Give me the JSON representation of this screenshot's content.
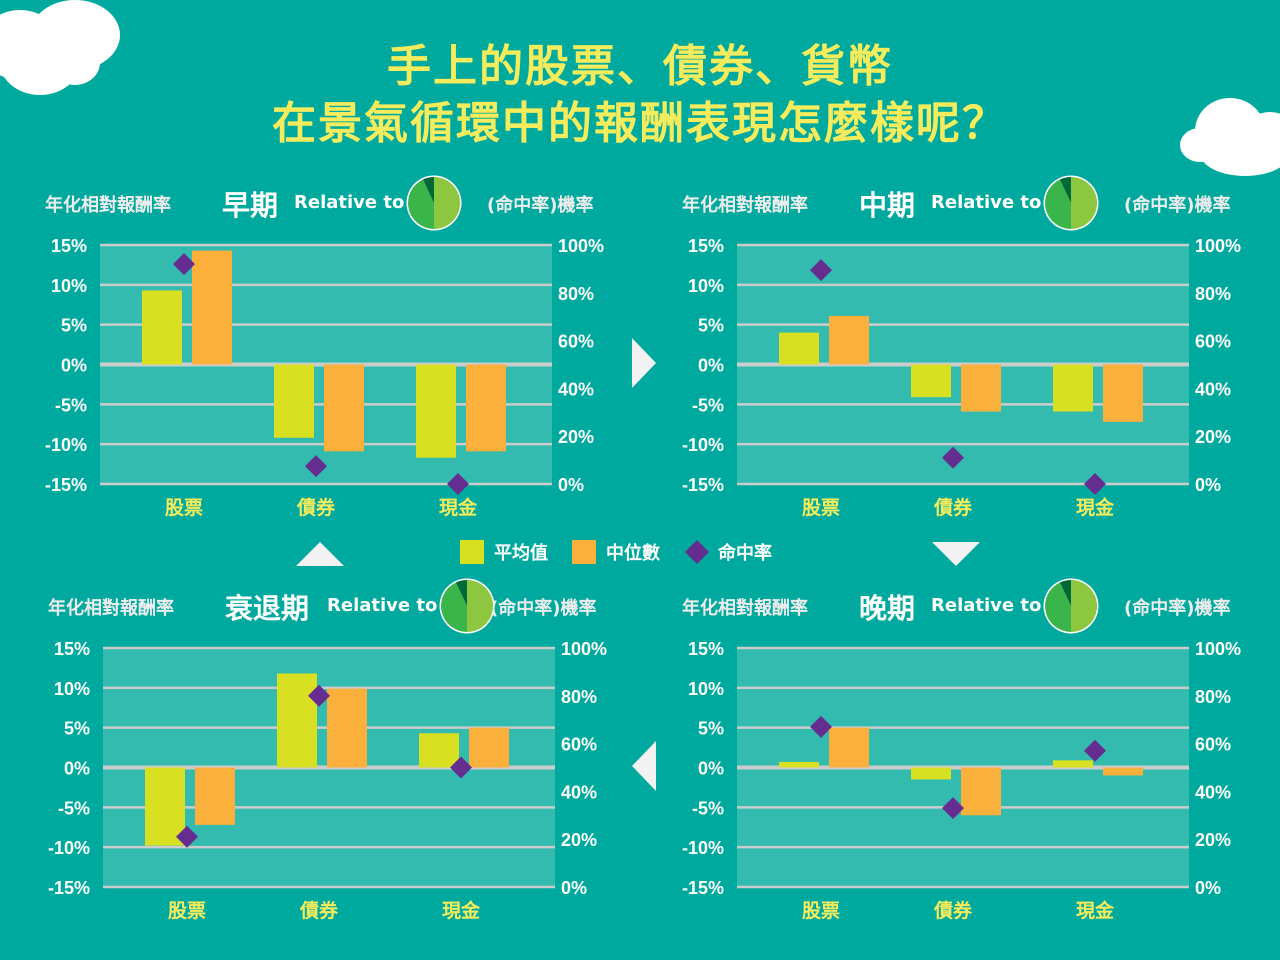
{
  "title": {
    "line1": "手上的股票、債券、貨幣",
    "line2": "在景氣循環中的報酬表現怎麼樣呢？"
  },
  "colors": {
    "background": "#00A99D",
    "plot_background": "#33BBB0",
    "gridline": "#CCCCCC",
    "title": "#F4EC5C",
    "category_label": "#F4EC5C",
    "mean": "#D8E021",
    "median": "#FBB03B",
    "hit_rate": "#662D91",
    "pie_light": "#8DC63F",
    "pie_mid": "#39B54A",
    "pie_dark": "#006837"
  },
  "legend": {
    "mean": "平均值",
    "median": "中位數",
    "hit_rate": "命中率"
  },
  "chart_data": [
    {
      "type": "bar",
      "period": "早期",
      "subtitle": "Relative to",
      "ylabel_left": "年化相對報酬率",
      "ylabel_right": "(命中率)機率",
      "categories": [
        "股票",
        "債券",
        "現金"
      ],
      "ylim_left": [
        -15,
        15
      ],
      "ylim_right": [
        0,
        100
      ],
      "yticks_left": [
        "15%",
        "10%",
        "5%",
        "0%",
        "-5%",
        "-10%",
        "-15%"
      ],
      "yticks_right": [
        "100%",
        "80%",
        "60%",
        "40%",
        "20%",
        "0%"
      ],
      "series": [
        {
          "name": "平均值",
          "axis": "left",
          "values": [
            9.3,
            -9.2,
            -11.7
          ]
        },
        {
          "name": "中位數",
          "axis": "left",
          "values": [
            14.3,
            -10.9,
            -10.9
          ]
        },
        {
          "name": "命中率",
          "axis": "right",
          "marker": "diamond",
          "values": [
            92,
            7.5,
            0
          ]
        }
      ],
      "grid": true
    },
    {
      "type": "bar",
      "period": "中期",
      "subtitle": "Relative to",
      "ylabel_left": "年化相對報酬率",
      "ylabel_right": "(命中率)機率",
      "categories": [
        "股票",
        "債券",
        "現金"
      ],
      "ylim_left": [
        -15,
        15
      ],
      "ylim_right": [
        0,
        100
      ],
      "yticks_left": [
        "15%",
        "10%",
        "5%",
        "0%",
        "-5%",
        "-10%",
        "-15%"
      ],
      "yticks_right": [
        "100%",
        "80%",
        "60%",
        "40%",
        "20%",
        "0%"
      ],
      "series": [
        {
          "name": "平均值",
          "axis": "left",
          "values": [
            4.0,
            -4.1,
            -5.9
          ]
        },
        {
          "name": "中位數",
          "axis": "left",
          "values": [
            6.1,
            -5.9,
            -7.2
          ]
        },
        {
          "name": "命中率",
          "axis": "right",
          "marker": "diamond",
          "values": [
            89.5,
            11,
            0
          ]
        }
      ],
      "grid": true
    },
    {
      "type": "bar",
      "period": "衰退期",
      "subtitle": "Relative to",
      "ylabel_left": "年化相對報酬率",
      "ylabel_right": "(命中率)機率",
      "categories": [
        "股票",
        "債券",
        "現金"
      ],
      "ylim_left": [
        -15,
        15
      ],
      "ylim_right": [
        0,
        100
      ],
      "yticks_left": [
        "15%",
        "10%",
        "5%",
        "0%",
        "-5%",
        "-10%",
        "-15%"
      ],
      "yticks_right": [
        "100%",
        "80%",
        "60%",
        "40%",
        "20%",
        "0%"
      ],
      "series": [
        {
          "name": "平均值",
          "axis": "left",
          "values": [
            -9.8,
            11.8,
            4.3
          ]
        },
        {
          "name": "中位數",
          "axis": "left",
          "values": [
            -7.2,
            9.9,
            5.0
          ]
        },
        {
          "name": "命中率",
          "axis": "right",
          "marker": "diamond",
          "values": [
            21,
            80,
            50
          ]
        }
      ],
      "grid": true
    },
    {
      "type": "bar",
      "period": "晚期",
      "subtitle": "Relative to",
      "ylabel_left": "年化相對報酬率",
      "ylabel_right": "(命中率)機率",
      "categories": [
        "股票",
        "債券",
        "現金"
      ],
      "ylim_left": [
        -15,
        15
      ],
      "ylim_right": [
        0,
        100
      ],
      "yticks_left": [
        "15%",
        "10%",
        "5%",
        "0%",
        "-5%",
        "-10%",
        "-15%"
      ],
      "yticks_right": [
        "100%",
        "80%",
        "60%",
        "40%",
        "20%",
        "0%"
      ],
      "series": [
        {
          "name": "平均值",
          "axis": "left",
          "values": [
            0.7,
            -1.5,
            0.9
          ]
        },
        {
          "name": "中位數",
          "axis": "left",
          "values": [
            5.0,
            -6.0,
            -1.0
          ]
        },
        {
          "name": "命中率",
          "axis": "right",
          "marker": "diamond",
          "values": [
            67,
            33,
            57
          ]
        }
      ],
      "grid": true
    }
  ],
  "pie_icon": {
    "light_share": 0.5,
    "mid_share": 0.43,
    "dark_share": 0.07
  }
}
